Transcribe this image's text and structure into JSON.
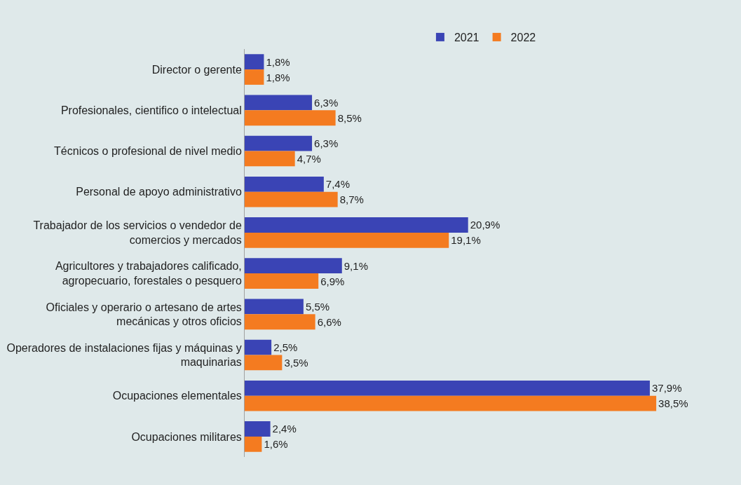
{
  "chart_data": {
    "type": "bar",
    "orientation": "horizontal",
    "legend": "top",
    "grid": false,
    "tick_labels": "y",
    "categories": [
      "Director o gerente",
      "Profesionales, cientifico o intelectual",
      "Técnicos o profesional de nivel medio",
      "Personal de apoyo administrativo",
      "Trabajador de los servicios o vendedor de comercios y mercados",
      "Agricultores y trabajadores calificado, agropecuario, forestales o pesquero",
      "Oficiales y operario o artesano de artes mecánicas y otros oficios",
      "Operadores de instalaciones fijas y máquinas y maquinarias",
      "Ocupaciones elementales",
      "Ocupaciones militares"
    ],
    "series": [
      {
        "name": "2021",
        "color": "#3a44b5",
        "values": [
          1.8,
          6.3,
          6.3,
          7.4,
          20.9,
          9.1,
          5.5,
          2.5,
          37.9,
          2.4
        ],
        "value_labels": [
          "1,8%",
          "6,3%",
          "6,3%",
          "7,4%",
          "20,9%",
          "9,1%",
          "5,5%",
          "2,5%",
          "37,9%",
          "2,4%"
        ]
      },
      {
        "name": "2022",
        "color": "#f47b20",
        "values": [
          1.8,
          8.5,
          4.7,
          8.7,
          19.1,
          6.9,
          6.6,
          3.5,
          38.5,
          1.6
        ],
        "value_labels": [
          "1,8%",
          "8,5%",
          "4,7%",
          "8,7%",
          "19,1%",
          "6,9%",
          "6,6%",
          "3,5%",
          "38,5%",
          "1,6%"
        ]
      }
    ]
  }
}
